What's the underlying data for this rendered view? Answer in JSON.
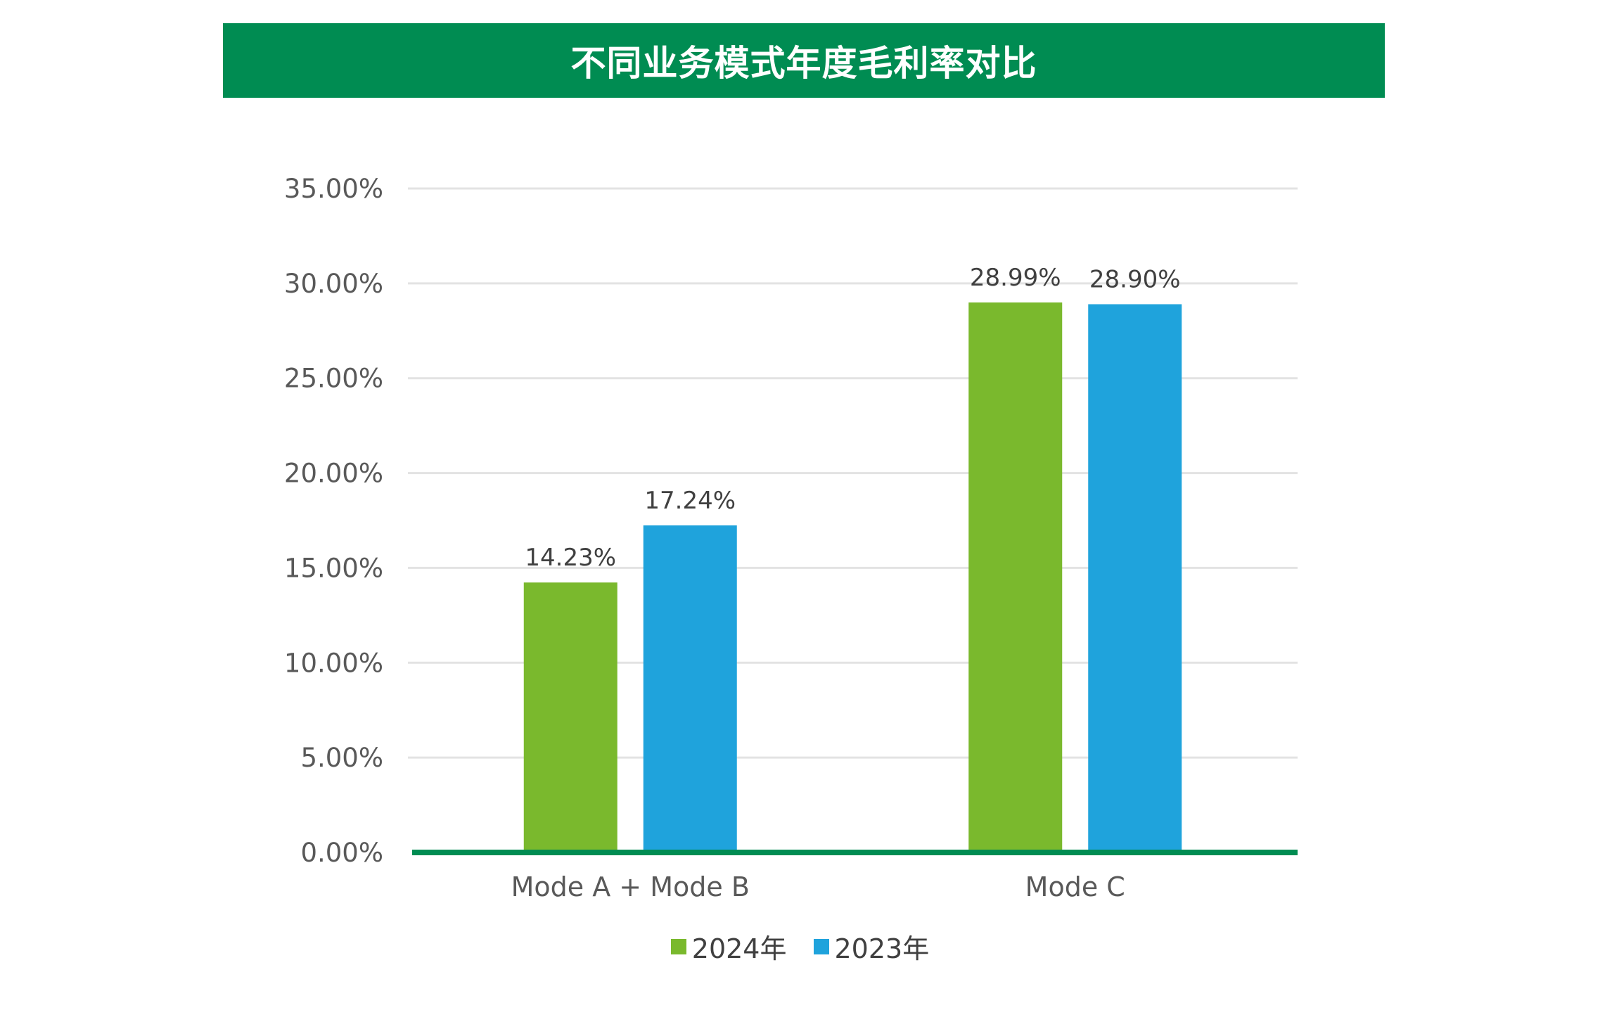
{
  "chart_data": {
    "type": "bar",
    "title": "不同业务模式年度毛利率对比",
    "categories": [
      "Mode A + Mode B",
      "Mode C"
    ],
    "series": [
      {
        "name": "2024年",
        "color": "#7AB92D",
        "values": [
          14.23,
          28.99
        ],
        "labels": [
          "14.23%",
          "28.99%"
        ]
      },
      {
        "name": "2023年",
        "color": "#1FA3DC",
        "values": [
          17.24,
          28.9
        ],
        "labels": [
          "17.24%",
          "28.90%"
        ]
      }
    ],
    "ylim": [
      0,
      35
    ],
    "yticks": [
      "0.00%",
      "5.00%",
      "10.00%",
      "15.00%",
      "20.00%",
      "25.00%",
      "30.00%",
      "35.00%"
    ],
    "ytick_values": [
      0,
      5,
      10,
      15,
      20,
      25,
      30,
      35
    ],
    "grid": true,
    "legend_position": "bottom",
    "colors": {
      "title_background": "#008C52",
      "axis_line": "#008C52",
      "gridline": "#E3E3E3"
    }
  }
}
